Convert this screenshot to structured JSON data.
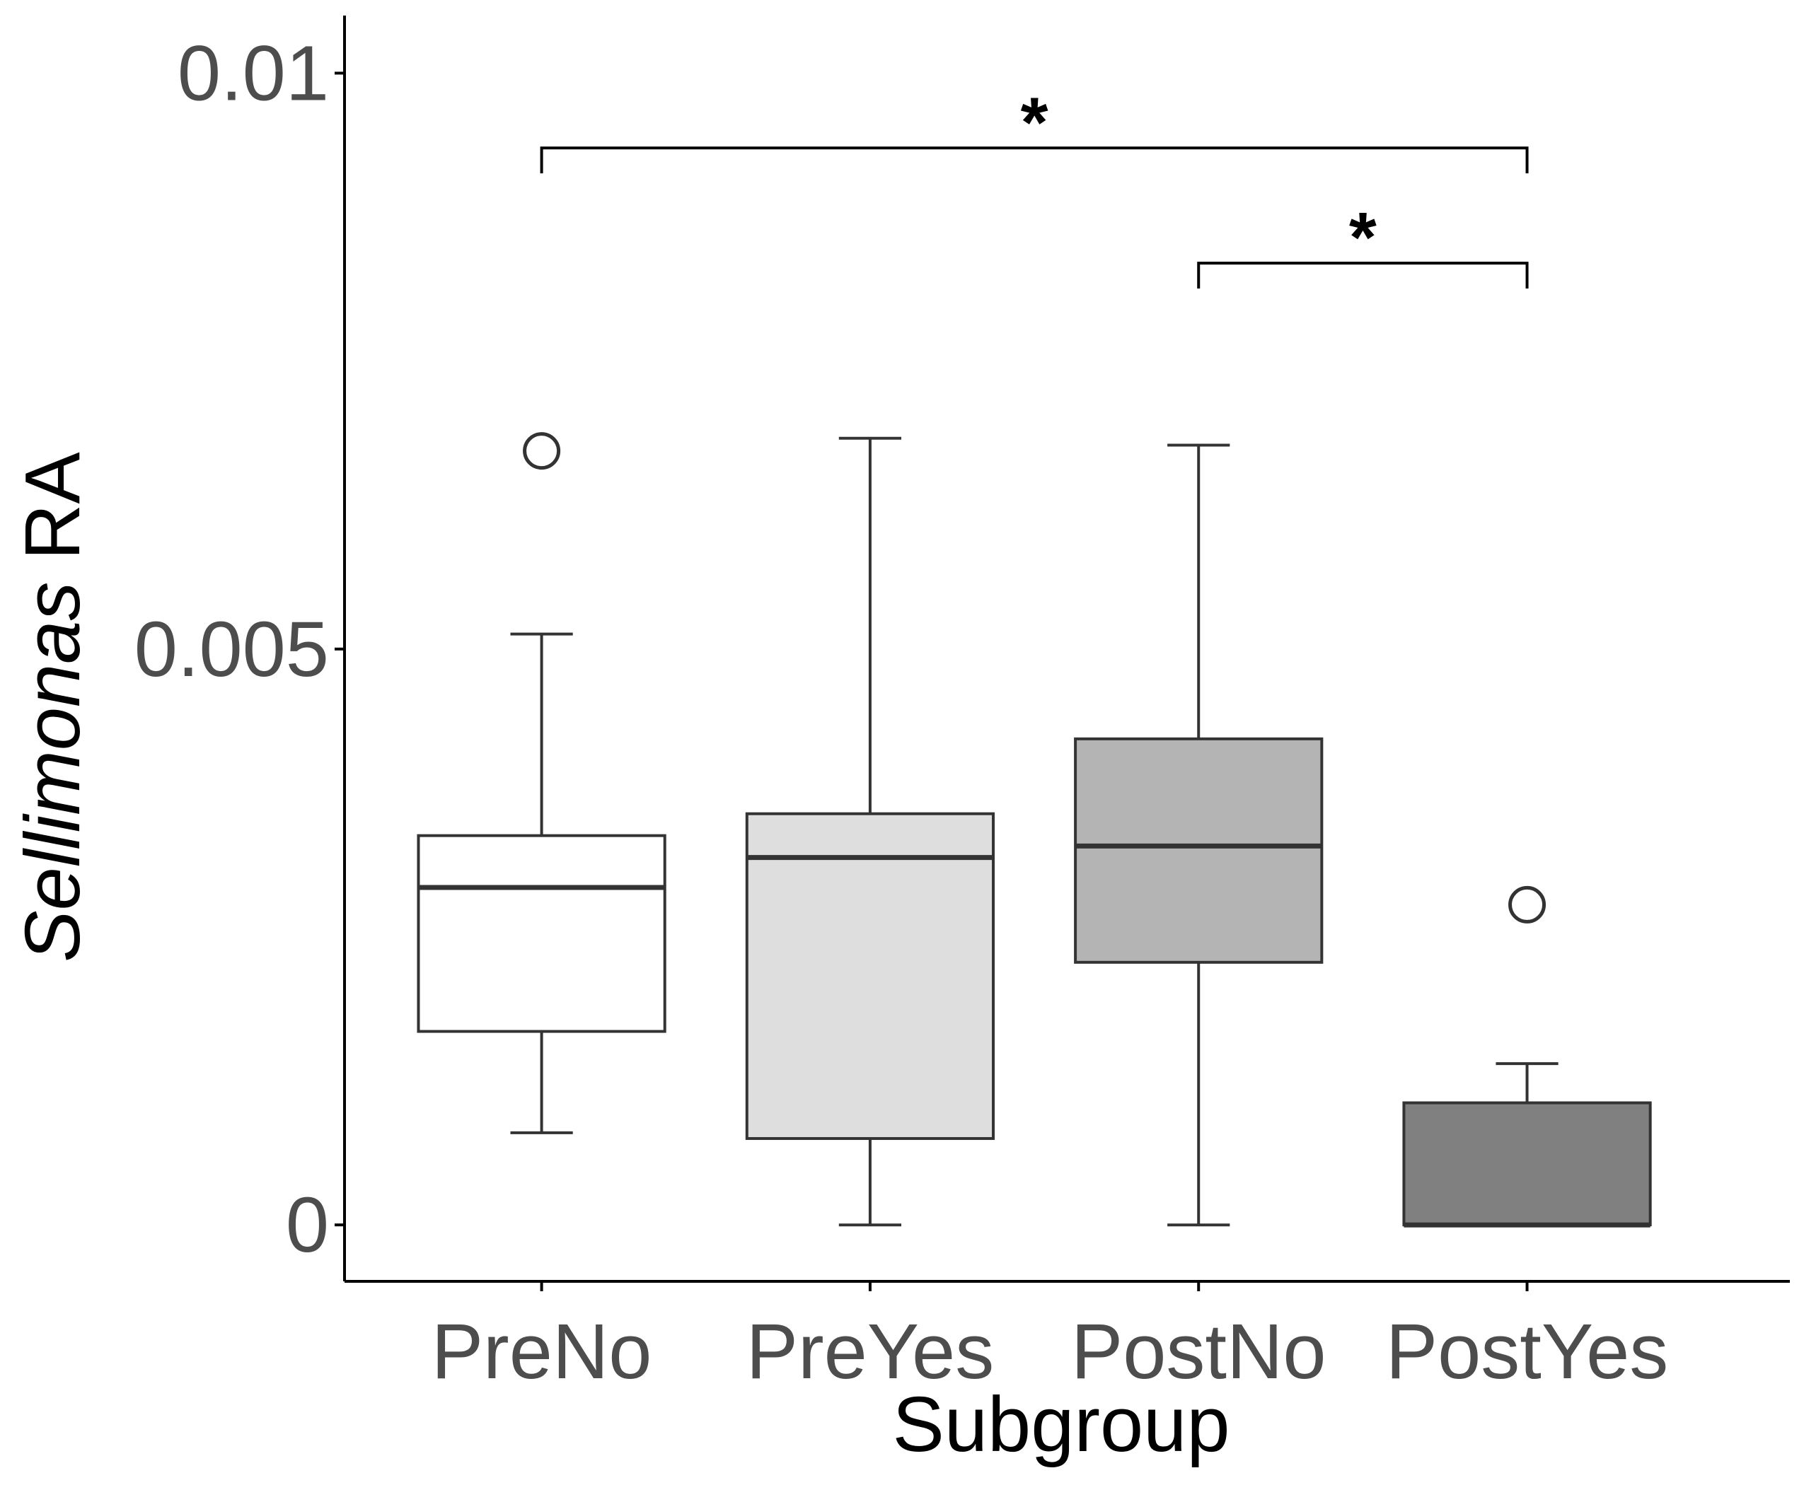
{
  "chart_data": {
    "type": "boxplot",
    "xlabel": "Subgroup",
    "ylabel_italic": "Sellimonas",
    "ylabel_rest": " RA",
    "ylim": [
      -0.00049,
      0.0105
    ],
    "yticks": [
      {
        "value": 0,
        "label": "0"
      },
      {
        "value": 0.005,
        "label": "0.005"
      },
      {
        "value": 0.01,
        "label": "0.01"
      }
    ],
    "categories": [
      "PreNo",
      "PreYes",
      "PostNo",
      "PostYes"
    ],
    "boxes": [
      {
        "name": "PreNo",
        "fill": "#ffffff",
        "whisker_low": 0.0008,
        "q1": 0.00168,
        "median": 0.00293,
        "q3": 0.00338,
        "whisker_high": 0.00513,
        "outliers": [
          0.00672
        ]
      },
      {
        "name": "PreYes",
        "fill": "#dedede",
        "whisker_low": 0.0,
        "q1": 0.00075,
        "median": 0.00319,
        "q3": 0.00357,
        "whisker_high": 0.00683,
        "outliers": []
      },
      {
        "name": "PostNo",
        "fill": "#b4b4b4",
        "whisker_low": 0.0,
        "q1": 0.00228,
        "median": 0.00329,
        "q3": 0.00422,
        "whisker_high": 0.00677,
        "outliers": []
      },
      {
        "name": "PostYes",
        "fill": "#808080",
        "whisker_low": 0.0,
        "q1": 0.0,
        "median": 0.0,
        "q3": 0.00106,
        "whisker_high": 0.0014,
        "outliers": [
          0.00278
        ]
      }
    ],
    "significance": [
      {
        "from": "PreNo",
        "to": "PostYes",
        "y": 0.00935,
        "tip": 0.00022,
        "label": "*"
      },
      {
        "from": "PostNo",
        "to": "PostYes",
        "y": 0.00835,
        "tip": 0.00022,
        "label": "*"
      }
    ],
    "grid": false,
    "legend": "none",
    "colors": {
      "box_line": "#333333",
      "axis": "#000000",
      "tick_label": "#4d4d4d"
    }
  }
}
